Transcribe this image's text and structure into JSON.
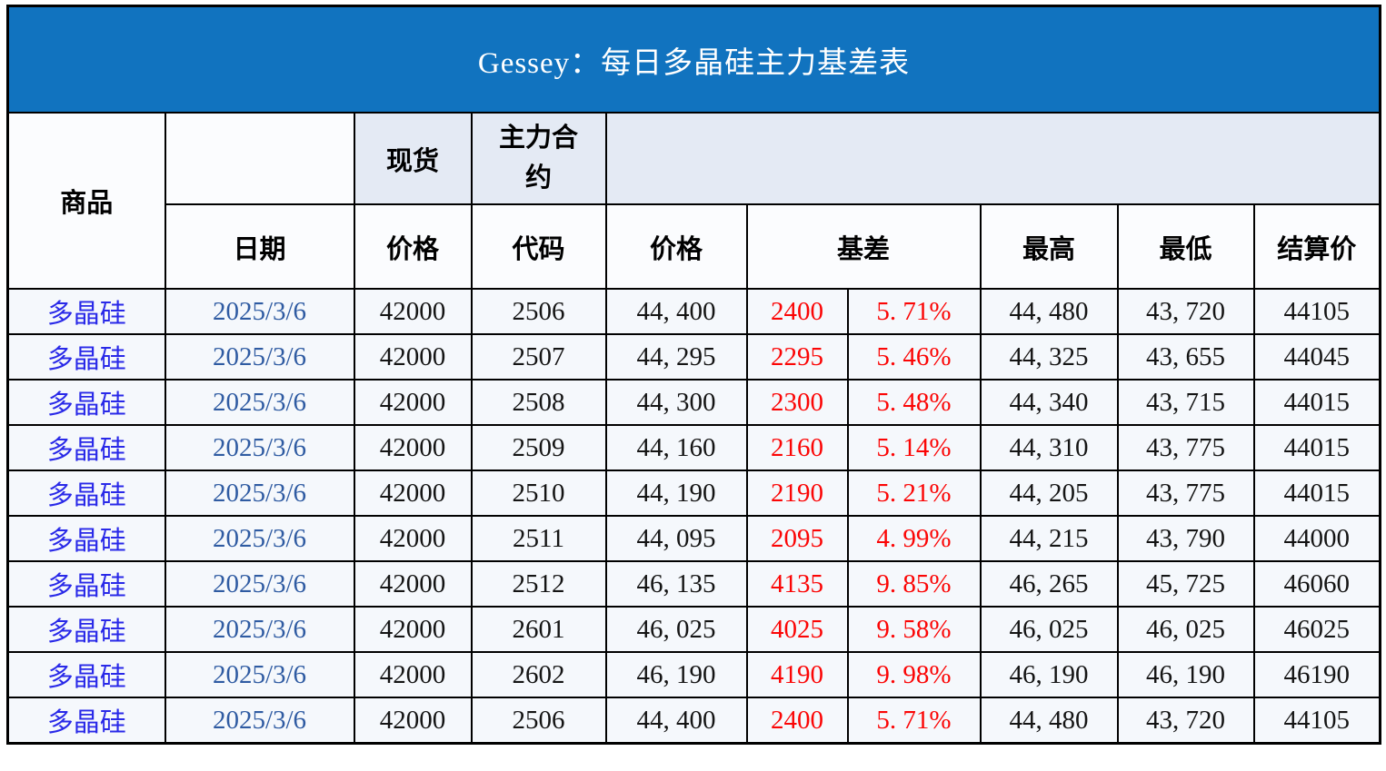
{
  "colors": {
    "title_bg": "#1173BF",
    "group_fill": "#E4EAF4",
    "header_bg": "#FBFCFE",
    "row_bg": "#F5F8FC",
    "commodity_text": "#2929E8",
    "date_text": "#2F5BA2",
    "basis_text": "#FB0505",
    "number_text": "#141414"
  },
  "chart_data": {
    "type": "table",
    "title": "Gessey：每日多晶硅主力基差表",
    "headers": {
      "commodity": "商品",
      "spot_group": "现货",
      "main_contract_group": "主力合约",
      "date": "日期",
      "spot_price": "价格",
      "code": "代码",
      "price": "价格",
      "basis": "基差",
      "high": "最高",
      "low": "最低",
      "settle": "结算价"
    },
    "column_order": [
      "commodity",
      "date",
      "spot_price",
      "code",
      "price",
      "basis",
      "basis_pct",
      "high",
      "low",
      "settle"
    ],
    "rows": [
      {
        "commodity": "多晶硅",
        "date": "2025/3/6",
        "spot_price": "42000",
        "code": "2506",
        "price": "44, 400",
        "basis": "2400",
        "basis_pct": "5. 71%",
        "high": "44, 480",
        "low": "43, 720",
        "settle": "44105"
      },
      {
        "commodity": "多晶硅",
        "date": "2025/3/6",
        "spot_price": "42000",
        "code": "2507",
        "price": "44, 295",
        "basis": "2295",
        "basis_pct": "5. 46%",
        "high": "44, 325",
        "low": "43, 655",
        "settle": "44045"
      },
      {
        "commodity": "多晶硅",
        "date": "2025/3/6",
        "spot_price": "42000",
        "code": "2508",
        "price": "44, 300",
        "basis": "2300",
        "basis_pct": "5. 48%",
        "high": "44, 340",
        "low": "43, 715",
        "settle": "44015"
      },
      {
        "commodity": "多晶硅",
        "date": "2025/3/6",
        "spot_price": "42000",
        "code": "2509",
        "price": "44, 160",
        "basis": "2160",
        "basis_pct": "5. 14%",
        "high": "44, 310",
        "low": "43, 775",
        "settle": "44015"
      },
      {
        "commodity": "多晶硅",
        "date": "2025/3/6",
        "spot_price": "42000",
        "code": "2510",
        "price": "44, 190",
        "basis": "2190",
        "basis_pct": "5. 21%",
        "high": "44, 205",
        "low": "43, 775",
        "settle": "44015"
      },
      {
        "commodity": "多晶硅",
        "date": "2025/3/6",
        "spot_price": "42000",
        "code": "2511",
        "price": "44, 095",
        "basis": "2095",
        "basis_pct": "4. 99%",
        "high": "44, 215",
        "low": "43, 790",
        "settle": "44000"
      },
      {
        "commodity": "多晶硅",
        "date": "2025/3/6",
        "spot_price": "42000",
        "code": "2512",
        "price": "46, 135",
        "basis": "4135",
        "basis_pct": "9. 85%",
        "high": "46, 265",
        "low": "45, 725",
        "settle": "46060"
      },
      {
        "commodity": "多晶硅",
        "date": "2025/3/6",
        "spot_price": "42000",
        "code": "2601",
        "price": "46, 025",
        "basis": "4025",
        "basis_pct": "9. 58%",
        "high": "46, 025",
        "low": "46, 025",
        "settle": "46025"
      },
      {
        "commodity": "多晶硅",
        "date": "2025/3/6",
        "spot_price": "42000",
        "code": "2602",
        "price": "46, 190",
        "basis": "4190",
        "basis_pct": "9. 98%",
        "high": "46, 190",
        "low": "46, 190",
        "settle": "46190"
      },
      {
        "commodity": "多晶硅",
        "date": "2025/3/6",
        "spot_price": "42000",
        "code": "2506",
        "price": "44, 400",
        "basis": "2400",
        "basis_pct": "5. 71%",
        "high": "44, 480",
        "low": "43, 720",
        "settle": "44105"
      }
    ]
  }
}
